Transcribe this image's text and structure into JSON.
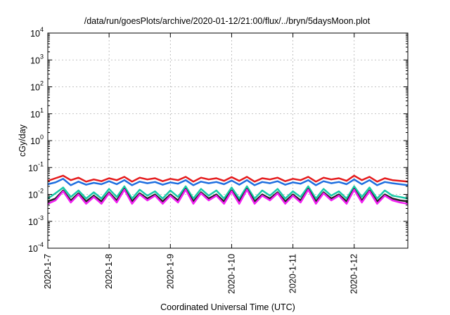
{
  "chart_data": {
    "type": "line",
    "title": "/data/run/goesPlots/archive/2020-01-12/21:00/flux/../bryn/5daysMoon.plot",
    "xlabel": "Coordinated Universal Time (UTC)",
    "ylabel": "cGy/day",
    "yscale": "log",
    "ylim": [
      0.0001,
      10000
    ],
    "xlim": [
      "2020-01-07T00:00",
      "2020-01-12T21:00"
    ],
    "grid": true,
    "legend": "none",
    "xticks": [
      {
        "x": "2020-01-07",
        "label": "2020-1-7"
      },
      {
        "x": "2020-01-08",
        "label": "2020-1-8"
      },
      {
        "x": "2020-01-09",
        "label": "2020-1-9"
      },
      {
        "x": "2020-01-10",
        "label": "2020-1-10"
      },
      {
        "x": "2020-01-11",
        "label": "2020-1-11"
      },
      {
        "x": "2020-01-12",
        "label": "2020-1-12"
      }
    ],
    "yticks": [
      {
        "y": 0.0001,
        "base": "10",
        "exp": "-4"
      },
      {
        "y": 0.001,
        "base": "10",
        "exp": "-3"
      },
      {
        "y": 0.01,
        "base": "10",
        "exp": "-2"
      },
      {
        "y": 0.1,
        "base": "10",
        "exp": "-1"
      },
      {
        "y": 1,
        "base": "10",
        "exp": "0"
      },
      {
        "y": 10,
        "base": "10",
        "exp": "1"
      },
      {
        "y": 100,
        "base": "10",
        "exp": "2"
      },
      {
        "y": 1000,
        "base": "10",
        "exp": "3"
      },
      {
        "y": 10000,
        "base": "10",
        "exp": "4"
      }
    ],
    "series": [
      {
        "color": "#e41a1c",
        "x": [
          "2020-01-07T00:00",
          "2020-01-07T03:00",
          "2020-01-07T06:00",
          "2020-01-07T09:00",
          "2020-01-07T12:00",
          "2020-01-07T15:00",
          "2020-01-07T18:00",
          "2020-01-07T21:00",
          "2020-01-08T00:00",
          "2020-01-08T03:00",
          "2020-01-08T06:00",
          "2020-01-08T09:00",
          "2020-01-08T12:00",
          "2020-01-08T15:00",
          "2020-01-08T18:00",
          "2020-01-08T21:00",
          "2020-01-09T00:00",
          "2020-01-09T03:00",
          "2020-01-09T06:00",
          "2020-01-09T09:00",
          "2020-01-09T12:00",
          "2020-01-09T15:00",
          "2020-01-09T18:00",
          "2020-01-09T21:00",
          "2020-01-10T00:00",
          "2020-01-10T03:00",
          "2020-01-10T06:00",
          "2020-01-10T09:00",
          "2020-01-10T12:00",
          "2020-01-10T15:00",
          "2020-01-10T18:00",
          "2020-01-10T21:00",
          "2020-01-11T00:00",
          "2020-01-11T03:00",
          "2020-01-11T06:00",
          "2020-01-11T09:00",
          "2020-01-11T12:00",
          "2020-01-11T15:00",
          "2020-01-11T18:00",
          "2020-01-11T21:00",
          "2020-01-12T00:00",
          "2020-01-12T03:00",
          "2020-01-12T06:00",
          "2020-01-12T09:00",
          "2020-01-12T12:00",
          "2020-01-12T15:00",
          "2020-01-12T18:00",
          "2020-01-12T21:00"
        ],
        "values": [
          0.032,
          0.04,
          0.05,
          0.034,
          0.042,
          0.03,
          0.036,
          0.031,
          0.04,
          0.034,
          0.045,
          0.03,
          0.042,
          0.036,
          0.04,
          0.031,
          0.038,
          0.034,
          0.045,
          0.03,
          0.042,
          0.036,
          0.04,
          0.032,
          0.044,
          0.032,
          0.045,
          0.03,
          0.04,
          0.036,
          0.042,
          0.031,
          0.038,
          0.034,
          0.045,
          0.03,
          0.042,
          0.036,
          0.04,
          0.032,
          0.05,
          0.034,
          0.045,
          0.03,
          0.04,
          0.034,
          0.032,
          0.03
        ]
      },
      {
        "color": "#1f6fe0",
        "x": [
          "2020-01-07T00:00",
          "2020-01-07T03:00",
          "2020-01-07T06:00",
          "2020-01-07T09:00",
          "2020-01-07T12:00",
          "2020-01-07T15:00",
          "2020-01-07T18:00",
          "2020-01-07T21:00",
          "2020-01-08T00:00",
          "2020-01-08T03:00",
          "2020-01-08T06:00",
          "2020-01-08T09:00",
          "2020-01-08T12:00",
          "2020-01-08T15:00",
          "2020-01-08T18:00",
          "2020-01-08T21:00",
          "2020-01-09T00:00",
          "2020-01-09T03:00",
          "2020-01-09T06:00",
          "2020-01-09T09:00",
          "2020-01-09T12:00",
          "2020-01-09T15:00",
          "2020-01-09T18:00",
          "2020-01-09T21:00",
          "2020-01-10T00:00",
          "2020-01-10T03:00",
          "2020-01-10T06:00",
          "2020-01-10T09:00",
          "2020-01-10T12:00",
          "2020-01-10T15:00",
          "2020-01-10T18:00",
          "2020-01-10T21:00",
          "2020-01-11T00:00",
          "2020-01-11T03:00",
          "2020-01-11T06:00",
          "2020-01-11T09:00",
          "2020-01-11T12:00",
          "2020-01-11T15:00",
          "2020-01-11T18:00",
          "2020-01-11T21:00",
          "2020-01-12T00:00",
          "2020-01-12T03:00",
          "2020-01-12T06:00",
          "2020-01-12T09:00",
          "2020-01-12T12:00",
          "2020-01-12T15:00",
          "2020-01-12T18:00",
          "2020-01-12T21:00"
        ],
        "values": [
          0.024,
          0.028,
          0.038,
          0.022,
          0.03,
          0.023,
          0.027,
          0.024,
          0.031,
          0.024,
          0.034,
          0.022,
          0.03,
          0.026,
          0.029,
          0.023,
          0.028,
          0.025,
          0.034,
          0.022,
          0.03,
          0.026,
          0.029,
          0.024,
          0.033,
          0.023,
          0.034,
          0.022,
          0.029,
          0.026,
          0.031,
          0.023,
          0.028,
          0.025,
          0.034,
          0.022,
          0.031,
          0.026,
          0.029,
          0.024,
          0.036,
          0.024,
          0.034,
          0.022,
          0.029,
          0.026,
          0.024,
          0.022
        ]
      },
      {
        "color": "#17c9a8",
        "x": [
          "2020-01-07T00:00",
          "2020-01-07T03:00",
          "2020-01-07T06:00",
          "2020-01-07T09:00",
          "2020-01-07T12:00",
          "2020-01-07T15:00",
          "2020-01-07T18:00",
          "2020-01-07T21:00",
          "2020-01-08T00:00",
          "2020-01-08T03:00",
          "2020-01-08T06:00",
          "2020-01-08T09:00",
          "2020-01-08T12:00",
          "2020-01-08T15:00",
          "2020-01-08T18:00",
          "2020-01-08T21:00",
          "2020-01-09T00:00",
          "2020-01-09T03:00",
          "2020-01-09T06:00",
          "2020-01-09T09:00",
          "2020-01-09T12:00",
          "2020-01-09T15:00",
          "2020-01-09T18:00",
          "2020-01-09T21:00",
          "2020-01-10T00:00",
          "2020-01-10T03:00",
          "2020-01-10T06:00",
          "2020-01-10T09:00",
          "2020-01-10T12:00",
          "2020-01-10T15:00",
          "2020-01-10T18:00",
          "2020-01-10T21:00",
          "2020-01-11T00:00",
          "2020-01-11T03:00",
          "2020-01-11T06:00",
          "2020-01-11T09:00",
          "2020-01-11T12:00",
          "2020-01-11T15:00",
          "2020-01-11T18:00",
          "2020-01-11T21:00",
          "2020-01-12T00:00",
          "2020-01-12T03:00",
          "2020-01-12T06:00",
          "2020-01-12T09:00",
          "2020-01-12T12:00",
          "2020-01-12T15:00",
          "2020-01-12T18:00",
          "2020-01-12T21:00"
        ],
        "values": [
          0.007,
          0.011,
          0.018,
          0.008,
          0.014,
          0.007,
          0.012,
          0.007,
          0.016,
          0.008,
          0.02,
          0.007,
          0.015,
          0.009,
          0.013,
          0.007,
          0.014,
          0.008,
          0.02,
          0.007,
          0.016,
          0.009,
          0.014,
          0.007,
          0.018,
          0.007,
          0.02,
          0.007,
          0.014,
          0.009,
          0.016,
          0.007,
          0.013,
          0.008,
          0.02,
          0.007,
          0.016,
          0.009,
          0.013,
          0.007,
          0.02,
          0.008,
          0.018,
          0.007,
          0.014,
          0.009,
          0.008,
          0.007
        ]
      },
      {
        "color": "#222222",
        "x": [
          "2020-01-07T00:00",
          "2020-01-07T03:00",
          "2020-01-07T06:00",
          "2020-01-07T09:00",
          "2020-01-07T12:00",
          "2020-01-07T15:00",
          "2020-01-07T18:00",
          "2020-01-07T21:00",
          "2020-01-08T00:00",
          "2020-01-08T03:00",
          "2020-01-08T06:00",
          "2020-01-08T09:00",
          "2020-01-08T12:00",
          "2020-01-08T15:00",
          "2020-01-08T18:00",
          "2020-01-08T21:00",
          "2020-01-09T00:00",
          "2020-01-09T03:00",
          "2020-01-09T06:00",
          "2020-01-09T09:00",
          "2020-01-09T12:00",
          "2020-01-09T15:00",
          "2020-01-09T18:00",
          "2020-01-09T21:00",
          "2020-01-10T00:00",
          "2020-01-10T03:00",
          "2020-01-10T06:00",
          "2020-01-10T09:00",
          "2020-01-10T12:00",
          "2020-01-10T15:00",
          "2020-01-10T18:00",
          "2020-01-10T21:00",
          "2020-01-11T00:00",
          "2020-01-11T03:00",
          "2020-01-11T06:00",
          "2020-01-11T09:00",
          "2020-01-11T12:00",
          "2020-01-11T15:00",
          "2020-01-11T18:00",
          "2020-01-11T21:00",
          "2020-01-12T00:00",
          "2020-01-12T03:00",
          "2020-01-12T06:00",
          "2020-01-12T09:00",
          "2020-01-12T12:00",
          "2020-01-12T15:00",
          "2020-01-12T18:00",
          "2020-01-12T21:00"
        ],
        "values": [
          0.0055,
          0.007,
          0.014,
          0.006,
          0.011,
          0.0055,
          0.009,
          0.0055,
          0.012,
          0.006,
          0.016,
          0.0055,
          0.011,
          0.007,
          0.01,
          0.0055,
          0.01,
          0.006,
          0.016,
          0.0055,
          0.012,
          0.007,
          0.01,
          0.0055,
          0.014,
          0.0055,
          0.016,
          0.0055,
          0.01,
          0.007,
          0.012,
          0.0055,
          0.01,
          0.006,
          0.016,
          0.0055,
          0.012,
          0.007,
          0.01,
          0.0055,
          0.016,
          0.006,
          0.014,
          0.0055,
          0.01,
          0.007,
          0.006,
          0.0055
        ]
      },
      {
        "color": "#f21ff2",
        "x": [
          "2020-01-07T00:00",
          "2020-01-07T03:00",
          "2020-01-07T06:00",
          "2020-01-07T09:00",
          "2020-01-07T12:00",
          "2020-01-07T15:00",
          "2020-01-07T18:00",
          "2020-01-07T21:00",
          "2020-01-08T00:00",
          "2020-01-08T03:00",
          "2020-01-08T06:00",
          "2020-01-08T09:00",
          "2020-01-08T12:00",
          "2020-01-08T15:00",
          "2020-01-08T18:00",
          "2020-01-08T21:00",
          "2020-01-09T00:00",
          "2020-01-09T03:00",
          "2020-01-09T06:00",
          "2020-01-09T09:00",
          "2020-01-09T12:00",
          "2020-01-09T15:00",
          "2020-01-09T18:00",
          "2020-01-09T21:00",
          "2020-01-10T00:00",
          "2020-01-10T03:00",
          "2020-01-10T06:00",
          "2020-01-10T09:00",
          "2020-01-10T12:00",
          "2020-01-10T15:00",
          "2020-01-10T18:00",
          "2020-01-10T21:00",
          "2020-01-11T00:00",
          "2020-01-11T03:00",
          "2020-01-11T06:00",
          "2020-01-11T09:00",
          "2020-01-11T12:00",
          "2020-01-11T15:00",
          "2020-01-11T18:00",
          "2020-01-11T21:00",
          "2020-01-12T00:00",
          "2020-01-12T03:00",
          "2020-01-12T06:00",
          "2020-01-12T09:00",
          "2020-01-12T12:00",
          "2020-01-12T15:00",
          "2020-01-12T18:00",
          "2020-01-12T21:00"
        ],
        "values": [
          0.0045,
          0.006,
          0.013,
          0.005,
          0.01,
          0.0045,
          0.008,
          0.0045,
          0.011,
          0.005,
          0.015,
          0.0045,
          0.01,
          0.006,
          0.009,
          0.0045,
          0.009,
          0.005,
          0.015,
          0.0045,
          0.011,
          0.006,
          0.009,
          0.0045,
          0.013,
          0.0045,
          0.015,
          0.0045,
          0.009,
          0.006,
          0.011,
          0.0045,
          0.009,
          0.005,
          0.015,
          0.0045,
          0.011,
          0.006,
          0.009,
          0.0045,
          0.015,
          0.005,
          0.013,
          0.0045,
          0.009,
          0.006,
          0.005,
          0.0045
        ]
      }
    ]
  }
}
